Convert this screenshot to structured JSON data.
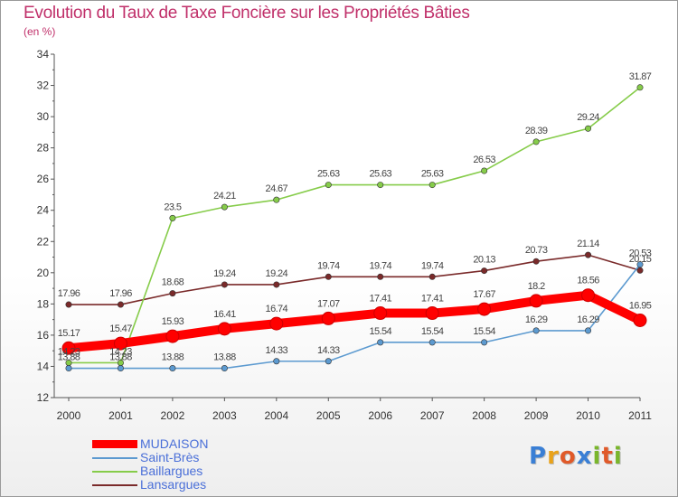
{
  "title": "Evolution du Taux de Taxe Foncière sur les Propriétés Bâties",
  "subtitle": "(en %)",
  "logo": {
    "letters": [
      "P",
      "r",
      "o",
      "x",
      "i",
      "t",
      "i"
    ],
    "colors": [
      "#3a7fd5",
      "#e9a21a",
      "#e05a2a",
      "#3a7fd5",
      "#7ab62c",
      "#e05a2a",
      "#7ab62c"
    ]
  },
  "chart_data": {
    "type": "line",
    "x": [
      "2000",
      "2001",
      "2002",
      "2003",
      "2004",
      "2005",
      "2006",
      "2007",
      "2008",
      "2009",
      "2010",
      "2011"
    ],
    "ylim": [
      12,
      34
    ],
    "yticks": [
      "12",
      "14",
      "16",
      "18",
      "20",
      "22",
      "24",
      "26",
      "28",
      "30",
      "32",
      "34"
    ],
    "grid": false,
    "legend_position": "bottom-left",
    "series": [
      {
        "name": "MUDAISON",
        "color": "#ff0000",
        "values": [
          15.17,
          15.47,
          15.93,
          16.41,
          16.74,
          17.07,
          17.41,
          17.41,
          17.67,
          18.2,
          18.56,
          16.95
        ],
        "labels": [
          "15.17",
          "15.47",
          "15.93",
          "16.41",
          "16.74",
          "17.07",
          "17.41",
          "17.41",
          "17.67",
          "18.2",
          "18.56",
          "16.95"
        ]
      },
      {
        "name": "Saint-Brès",
        "color": "#5c9ad0",
        "values": [
          13.88,
          13.88,
          13.88,
          13.88,
          14.33,
          14.33,
          15.54,
          15.54,
          15.54,
          16.29,
          16.29,
          20.53
        ],
        "labels": [
          "13.88",
          "13.88",
          "13.88",
          "13.88",
          "14.33",
          "14.33",
          "15.54",
          "15.54",
          "15.54",
          "16.29",
          "16.29",
          "20.53"
        ]
      },
      {
        "name": "Baillargues",
        "color": "#86cc4a",
        "values": [
          14.23,
          14.23,
          23.5,
          24.21,
          24.67,
          25.63,
          25.63,
          25.63,
          26.53,
          28.39,
          29.24,
          31.87
        ],
        "labels": [
          "14.23",
          "14.23",
          "23.5",
          "24.21",
          "24.67",
          "25.63",
          "25.63",
          "25.63",
          "26.53",
          "28.39",
          "29.24",
          "31.87"
        ]
      },
      {
        "name": "Lansargues",
        "color": "#7a2a2a",
        "values": [
          17.96,
          17.96,
          18.68,
          19.24,
          19.24,
          19.74,
          19.74,
          19.74,
          20.13,
          20.73,
          21.14,
          20.15
        ],
        "labels": [
          "17.96",
          "17.96",
          "18.68",
          "19.24",
          "19.24",
          "19.74",
          "19.74",
          "19.74",
          "20.13",
          "20.73",
          "21.14",
          "20.15"
        ]
      }
    ]
  }
}
